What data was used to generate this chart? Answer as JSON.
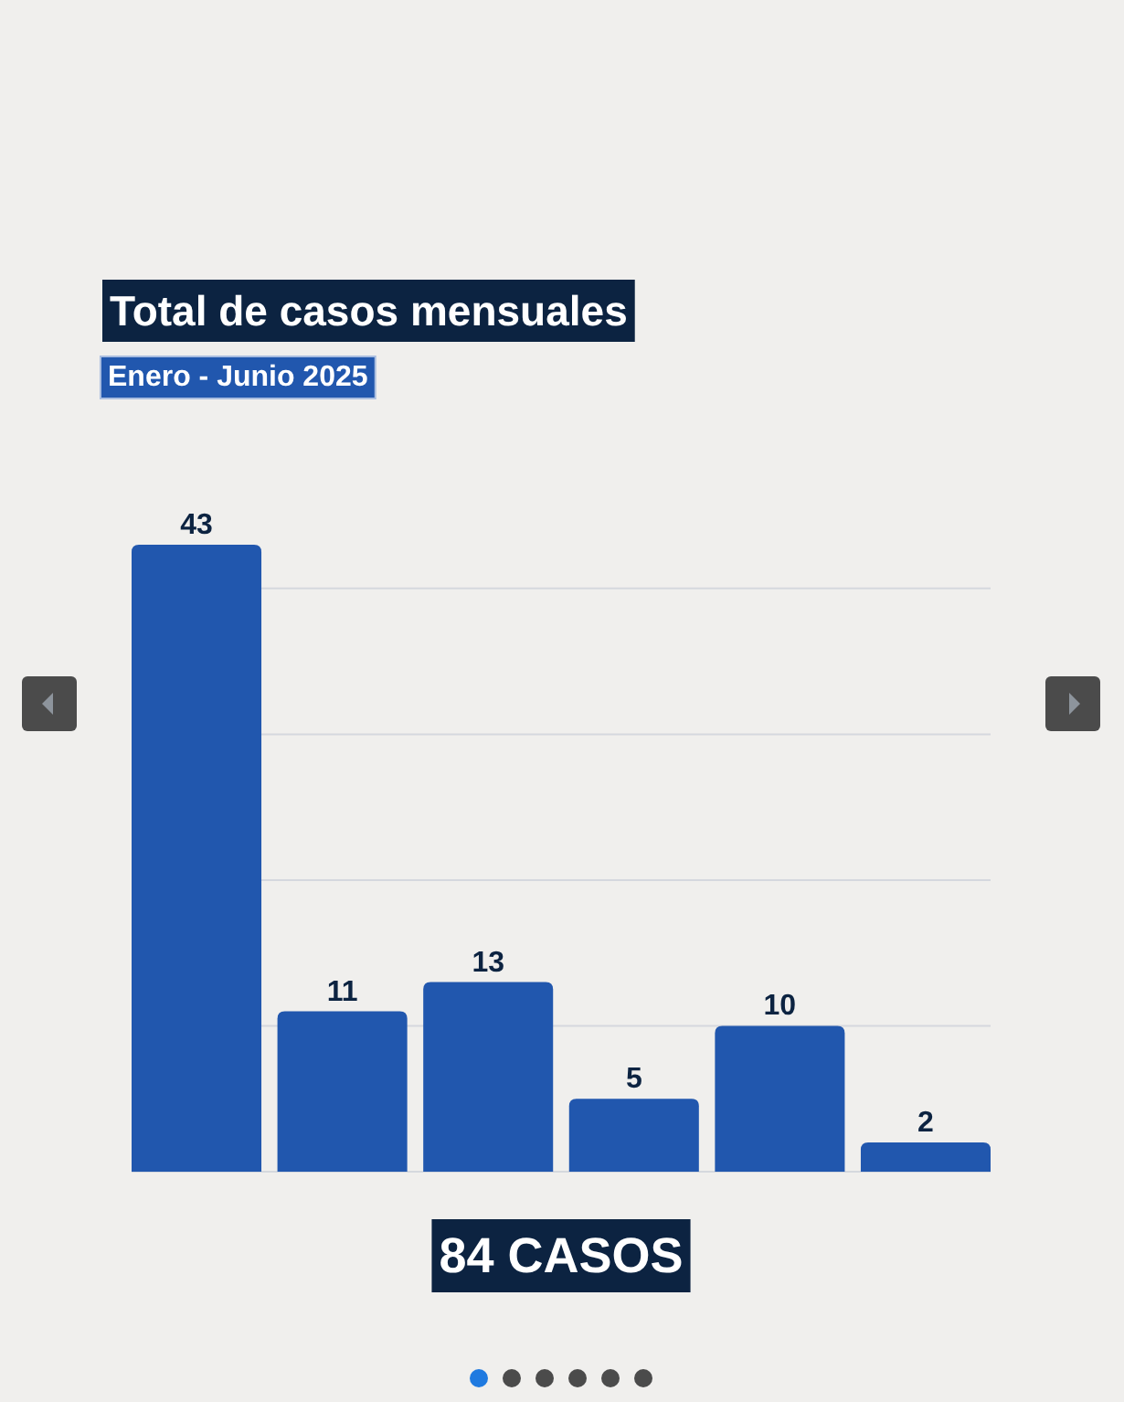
{
  "chart_data": {
    "type": "bar",
    "title": "Total de casos mensuales",
    "subtitle": "Enero - Junio 2025",
    "categories": [
      null,
      null,
      null,
      null,
      null,
      null
    ],
    "values": [
      43,
      11,
      13,
      5,
      10,
      2
    ],
    "color": "#2157ae",
    "yticks": [
      {
        "value": 0,
        "label": null
      },
      {
        "value": 10,
        "label": null
      },
      {
        "value": 20,
        "label": null
      },
      {
        "value": 30,
        "label": null
      },
      {
        "value": 40,
        "label": null
      }
    ],
    "grid": "y",
    "data_labels": true,
    "annotations": [
      "84 CASOS"
    ]
  }
}
